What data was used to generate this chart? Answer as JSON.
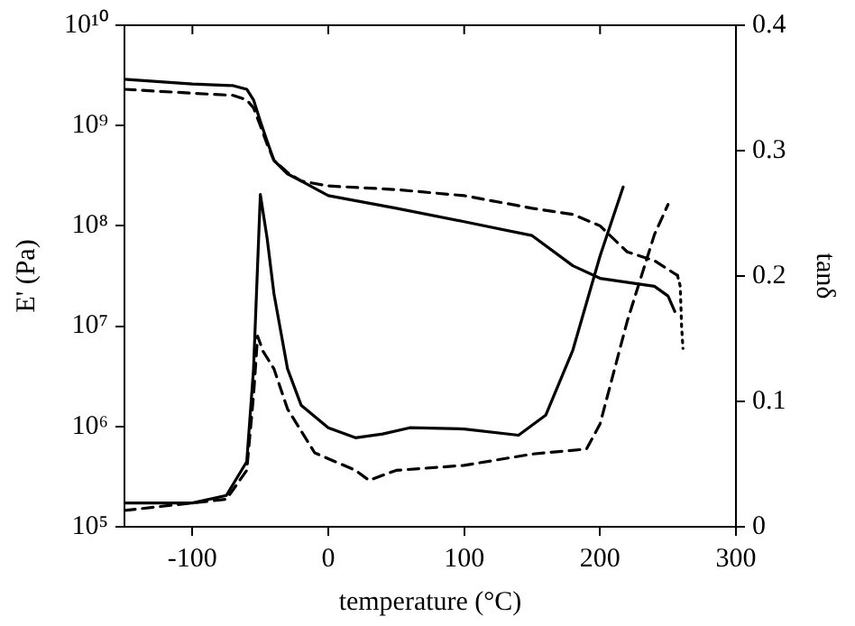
{
  "chart_data": {
    "type": "line",
    "xlabel": "temperature (°C)",
    "ylabel": "E' (Pa)",
    "y2label": "tanδ",
    "xlim": [
      -150,
      300
    ],
    "xticks": [
      -100,
      0,
      100,
      200,
      300
    ],
    "log": "y",
    "ylim": [
      100000,
      10000000000
    ],
    "yticks": [
      {
        "value": 100000,
        "label": "10⁵"
      },
      {
        "value": 1000000,
        "label": "10⁶"
      },
      {
        "value": 10000000,
        "label": "10⁷"
      },
      {
        "value": 100000000,
        "label": "10⁸"
      },
      {
        "value": 1000000000,
        "label": "10⁹"
      },
      {
        "value": 10000000000,
        "label": "10¹⁰"
      }
    ],
    "y2lim": [
      0,
      0.4
    ],
    "y2ticks": [
      0,
      0.1,
      0.2,
      0.3,
      0.4
    ],
    "grid": false,
    "legend": false,
    "marker": "none",
    "series": [
      {
        "color": "#000000",
        "line_style": "solid",
        "x": [
          -150,
          -100,
          -70,
          -60,
          -55,
          -50,
          -45,
          -40,
          -30,
          -20,
          0,
          50,
          100,
          150,
          180,
          200,
          240,
          250,
          255
        ],
        "values": [
          2900000000,
          2600000000,
          2500000000,
          2300000000,
          1800000000,
          1100000000,
          700000000,
          450000000,
          330000000,
          280000000,
          200000000,
          150000000,
          110000000,
          80000000,
          40000000,
          30000000,
          25000000,
          20000000,
          14000000
        ]
      },
      {
        "color": "#000000",
        "line_style": "dashed",
        "x": [
          -150,
          -100,
          -70,
          -60,
          -55,
          -50,
          -45,
          -40,
          -30,
          -20,
          0,
          50,
          100,
          150,
          180,
          200,
          220,
          240,
          257
        ],
        "values": [
          2300000000,
          2100000000,
          2000000000,
          1800000000,
          1500000000,
          1000000000,
          650000000,
          450000000,
          340000000,
          280000000,
          250000000,
          230000000,
          200000000,
          150000000,
          130000000,
          100000000,
          55000000,
          45000000,
          32000000
        ]
      },
      {
        "color": "#000000",
        "line_style": "dotted",
        "x": [
          257,
          259,
          260,
          261
        ],
        "values": [
          32000000,
          25000000,
          10000000,
          6000000
        ]
      },
      {
        "axis": "y2",
        "color": "#000000",
        "line_style": "solid",
        "x": [
          -150,
          -100,
          -75,
          -60,
          -55,
          -50,
          -45,
          -40,
          -30,
          -20,
          0,
          20,
          40,
          60,
          100,
          140,
          160,
          180,
          200,
          217
        ],
        "values": [
          0.019,
          0.019,
          0.025,
          0.052,
          0.126,
          0.265,
          0.23,
          0.186,
          0.126,
          0.097,
          0.079,
          0.071,
          0.074,
          0.079,
          0.078,
          0.073,
          0.089,
          0.141,
          0.216,
          0.271
        ]
      },
      {
        "axis": "y2",
        "color": "#000000",
        "line_style": "dashed",
        "x": [
          -150,
          -100,
          -75,
          -60,
          -55,
          -52,
          -48,
          -40,
          -30,
          -10,
          20,
          30,
          50,
          100,
          150,
          190,
          200,
          220,
          240,
          250
        ],
        "values": [
          0.013,
          0.019,
          0.022,
          0.045,
          0.105,
          0.152,
          0.14,
          0.126,
          0.094,
          0.059,
          0.045,
          0.037,
          0.045,
          0.049,
          0.058,
          0.062,
          0.082,
          0.164,
          0.233,
          0.257
        ]
      }
    ]
  }
}
